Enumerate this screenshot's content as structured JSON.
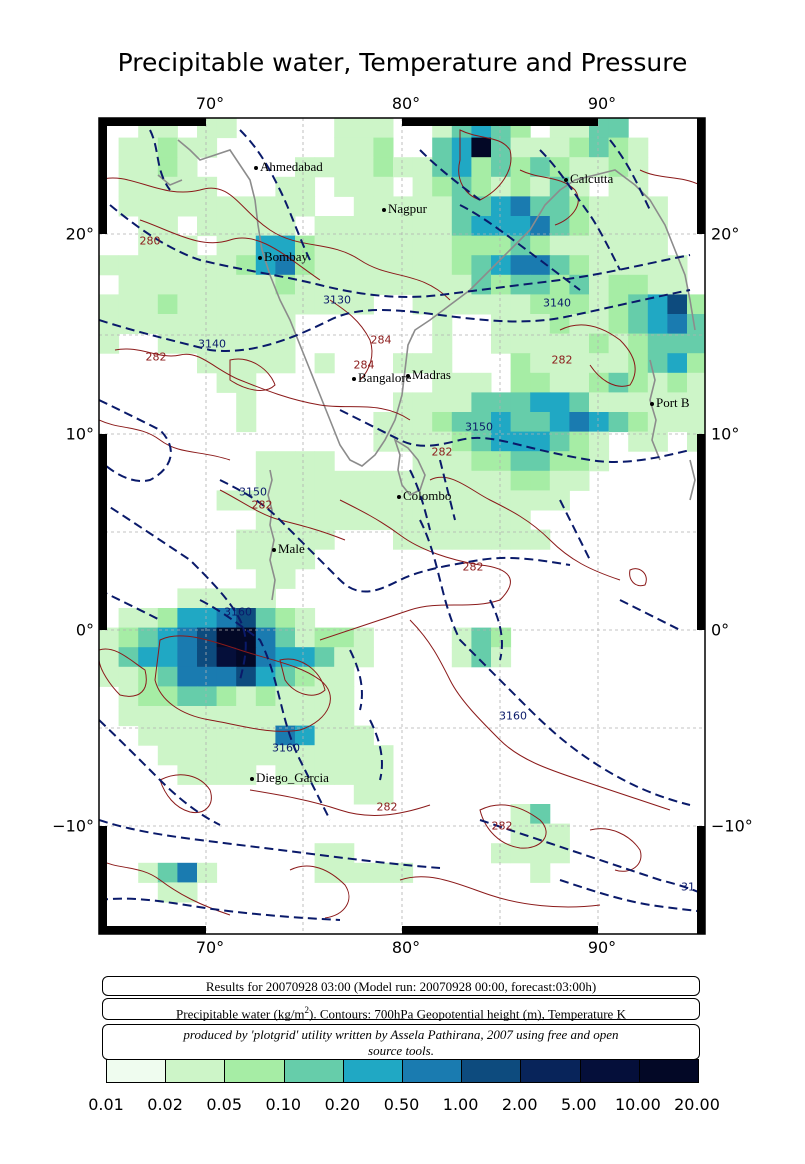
{
  "title": "Precipitable water, Temperature and Pressure",
  "axes": {
    "lon_labels": [
      "70°",
      "80°",
      "90°"
    ],
    "lat_labels": [
      "20°",
      "10°",
      "0°",
      "−10°"
    ]
  },
  "cities": [
    {
      "name": "Ahmedabad"
    },
    {
      "name": "Nagpur"
    },
    {
      "name": "Calcutta"
    },
    {
      "name": "Bombay"
    },
    {
      "name": "Bangalore"
    },
    {
      "name": "Madras"
    },
    {
      "name": "Port B"
    },
    {
      "name": "Colombo"
    },
    {
      "name": "Male"
    },
    {
      "name": "Diego_Garcia"
    }
  ],
  "contour_labels": {
    "pressure": [
      "3130",
      "3140",
      "3140",
      "3150",
      "3150",
      "3160",
      "3160",
      "3160",
      "31"
    ],
    "temperature": [
      "280",
      "282",
      "284",
      "284",
      "282",
      "282",
      "282",
      "282",
      "282",
      "282"
    ]
  },
  "info": {
    "line1": "Results for 20070928 03:00 (Model run: 20070928 00:00, forecast:03:00h)",
    "line2_pre": "Precipitable water (kg/m",
    "line2_sup": "2",
    "line2_post": ").  Contours: 700hPa Geopotential height (m), Temperature K",
    "credit_line1": "produced by 'plotgrid' utility written by Assela Pathirana, 2007 using free and open",
    "credit_line2": "source tools."
  },
  "legend": {
    "labels": [
      "0.01",
      "0.02",
      "0.05",
      "0.10",
      "0.20",
      "0.50",
      "1.00",
      "2.00",
      "5.00",
      "10.00",
      "20.00"
    ],
    "colors": [
      "#effcef",
      "#cdf5c8",
      "#a6eda5",
      "#66cdaa",
      "#20a8c4",
      "#1a7bb0",
      "#0d4b7e",
      "#08245a",
      "#050f3a",
      "#030826"
    ]
  }
}
